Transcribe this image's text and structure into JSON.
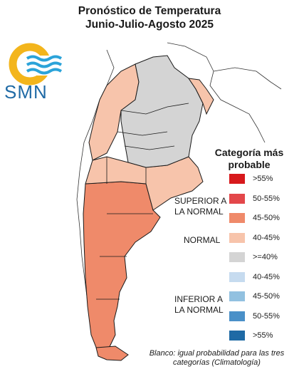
{
  "title": {
    "line1": "Pronóstico de Temperatura",
    "line2": "Junio-Julio-Agosto 2025"
  },
  "logo": {
    "text": "SMN",
    "icon": "smn-sun-wave-logo"
  },
  "legend": {
    "title_line1": "Categoría más",
    "title_line2": "probable",
    "items": [
      {
        "label": ">55%",
        "color": "#d7191c"
      },
      {
        "label": "50-55%",
        "color": "#e3474a"
      },
      {
        "label": "45-50%",
        "color": "#ef8a6a"
      },
      {
        "label": "40-45%",
        "color": "#f7c4ab"
      },
      {
        "label": ">=40%",
        "color": "#d4d4d4"
      },
      {
        "label": "40-45%",
        "color": "#c6dbef"
      },
      {
        "label": "45-50%",
        "color": "#92c1e0"
      },
      {
        "label": "50-55%",
        "color": "#4a90c8"
      },
      {
        "label": ">55%",
        "color": "#1f6aa5"
      }
    ],
    "categories": {
      "superior_line1": "SUPERIOR A",
      "superior_line2": "LA NORMAL",
      "normal": "NORMAL",
      "inferior_line1": "INFERIOR A",
      "inferior_line2": "LA NORMAL"
    }
  },
  "note": {
    "line1": "Blanco: igual probabilidad para las tres",
    "line2": "categorías (Climatología)"
  },
  "colors": {
    "normal_grey": "#d4d4d4",
    "light_salmon": "#f7c4ab",
    "salmon": "#ef8a6a",
    "border": "#1a1a1a"
  }
}
